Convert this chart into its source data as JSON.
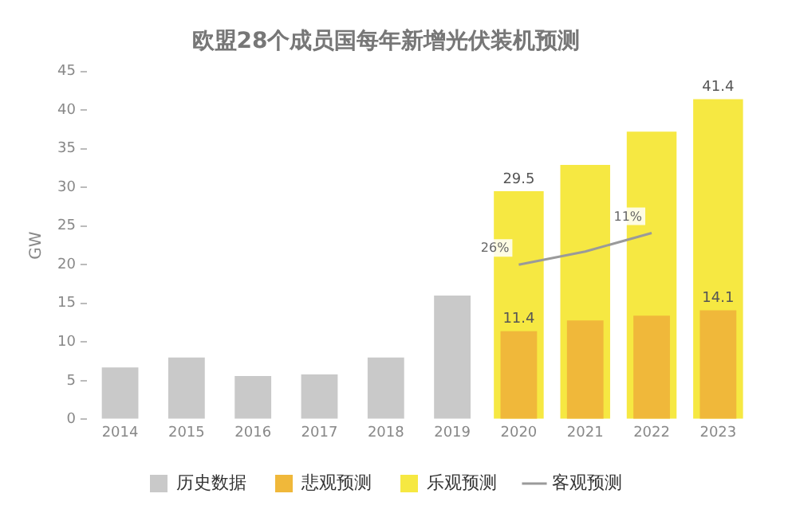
{
  "chart_data": {
    "type": "bar",
    "title": "欧盟28个成员国每年新增光伏装机预测",
    "ylabel": "GW",
    "categories": [
      "2014",
      "2015",
      "2016",
      "2017",
      "2018",
      "2019",
      "2020",
      "2021",
      "2022",
      "2023"
    ],
    "series": [
      {
        "name": "历史数据",
        "color": "#c9c9c9",
        "values": [
          6.7,
          8.0,
          5.6,
          5.8,
          8.0,
          16.0,
          null,
          null,
          null,
          null
        ]
      },
      {
        "name": "悲观预测",
        "color": "#f0b83a",
        "values": [
          null,
          null,
          null,
          null,
          null,
          null,
          11.4,
          12.8,
          13.4,
          14.1
        ],
        "value_labels": [
          null,
          null,
          null,
          null,
          null,
          null,
          "11.4",
          null,
          null,
          "14.1"
        ]
      },
      {
        "name": "乐观预测",
        "color": "#f6e842",
        "values": [
          null,
          null,
          null,
          null,
          null,
          null,
          29.5,
          32.9,
          37.2,
          41.4
        ],
        "value_labels": [
          null,
          null,
          null,
          null,
          null,
          null,
          "29.5",
          null,
          null,
          "41.4"
        ]
      },
      {
        "name": "客观预测",
        "type": "line",
        "color": "#9a9a9a",
        "values": [
          null,
          null,
          null,
          null,
          null,
          null,
          20.0,
          21.7,
          24.1,
          null
        ]
      }
    ],
    "annotations": [
      {
        "text": "26%",
        "x": "2020",
        "y": 20.0
      },
      {
        "text": "11%",
        "x": "2022",
        "y": 24.1
      }
    ],
    "ylim": [
      0,
      45
    ],
    "yticks": [
      0,
      5,
      10,
      15,
      20,
      25,
      30,
      35,
      40,
      45
    ],
    "grid": false,
    "legend": "bottom",
    "marker": "none"
  }
}
